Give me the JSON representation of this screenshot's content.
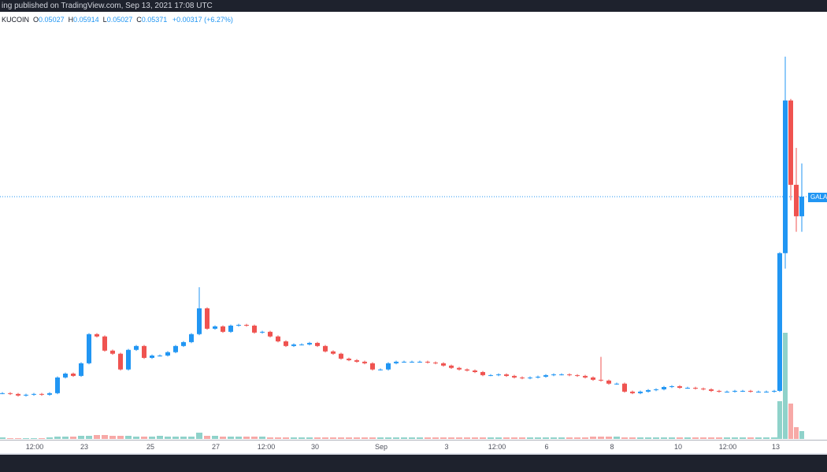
{
  "header": {
    "published": "ing published on TradingView.com, Sep 13, 2021 17:08 UTC"
  },
  "legend": {
    "exchange": "KUCOIN",
    "o_label": "O",
    "o": "0.05027",
    "h_label": "H",
    "h": "0.05914",
    "l_label": "L",
    "l": "0.05027",
    "c_label": "C",
    "c": "0.05371",
    "change": "+0.00317 (+6.27%)"
  },
  "price_label": "GALAX",
  "colors": {
    "up": "#2196f3",
    "down": "#ef5350",
    "vol_up": "#8fd2ca",
    "vol_down": "#f7a9a7",
    "last_price_line": "#2196f3"
  },
  "chart_data": {
    "type": "candlestick",
    "last_price": 0.05371,
    "x_tick_labels": [
      "12:00",
      "23",
      "25",
      "27",
      "12:00",
      "30",
      "Sep",
      "3",
      "12:00",
      "6",
      "8",
      "10",
      "12:00",
      "13"
    ],
    "close": [
      0.04609,
      0.04606,
      0.046,
      0.04603,
      0.04606,
      0.04603,
      0.04609,
      0.0467,
      0.04685,
      0.04676,
      0.04725,
      0.04838,
      0.04829,
      0.04774,
      0.04762,
      0.04701,
      0.04777,
      0.04792,
      0.04746,
      0.04755,
      0.04755,
      0.04768,
      0.04792,
      0.04807,
      0.04838,
      0.04938,
      0.04859,
      0.04868,
      0.04847,
      0.04871,
      0.04874,
      0.04871,
      0.04844,
      0.04847,
      0.04829,
      0.0481,
      0.04792,
      0.04798,
      0.04798,
      0.04804,
      0.04792,
      0.04771,
      0.04762,
      0.04743,
      0.04737,
      0.04731,
      0.04725,
      0.04701,
      0.04701,
      0.04725,
      0.04731,
      0.04731,
      0.04731,
      0.04731,
      0.04728,
      0.04725,
      0.04716,
      0.04707,
      0.04701,
      0.04697,
      0.04691,
      0.04679,
      0.04679,
      0.04682,
      0.04676,
      0.0467,
      0.04667,
      0.0467,
      0.04673,
      0.04679,
      0.04682,
      0.04682,
      0.04679,
      0.04676,
      0.0467,
      0.04661,
      0.04658,
      0.04646,
      0.04646,
      0.04615,
      0.04609,
      0.04615,
      0.04621,
      0.04624,
      0.04633,
      0.04636,
      0.0463,
      0.0463,
      0.04627,
      0.04624,
      0.04618,
      0.04615,
      0.04615,
      0.04618,
      0.04618,
      0.04615,
      0.04615,
      0.04615,
      0.04618,
      0.05152,
      0.05744,
      0.05417,
      0.05295,
      0.05371
    ],
    "high": {
      "25": 0.0502,
      "100": 0.05914,
      "101": 0.0575,
      "102": 0.0556,
      "103": 0.055,
      "76": 0.0475
    },
    "volume": [
      2,
      1,
      1,
      1,
      1,
      1,
      2,
      3,
      3,
      3,
      4,
      4,
      5,
      5,
      4,
      4,
      4,
      3,
      3,
      3,
      4,
      3,
      3,
      3,
      3,
      8,
      4,
      4,
      3,
      3,
      3,
      3,
      3,
      3,
      2,
      2,
      2,
      2,
      2,
      2,
      2,
      2,
      2,
      2,
      2,
      2,
      2,
      2,
      2,
      2,
      2,
      2,
      2,
      2,
      2,
      2,
      2,
      2,
      2,
      2,
      2,
      2,
      2,
      2,
      2,
      2,
      2,
      2,
      2,
      2,
      2,
      2,
      2,
      2,
      2,
      3,
      3,
      3,
      3,
      2,
      2,
      2,
      2,
      2,
      2,
      2,
      2,
      2,
      2,
      2,
      2,
      2,
      2,
      2,
      2,
      2,
      2,
      2,
      2,
      48,
      135,
      45,
      15,
      10
    ]
  }
}
